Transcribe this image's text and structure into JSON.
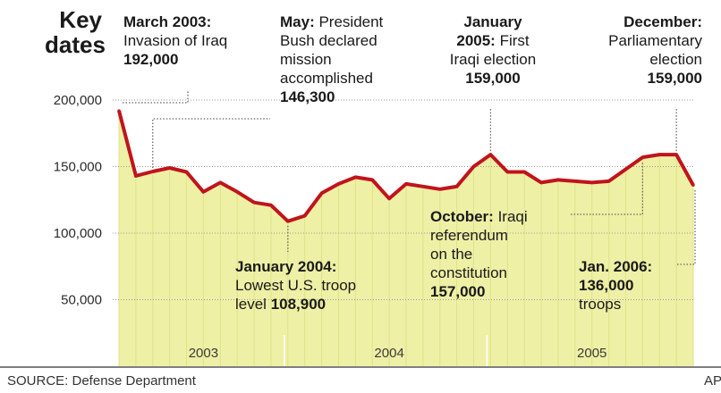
{
  "key_title": {
    "line1": "Key",
    "line2": "dates"
  },
  "source": "SOURCE: Defense Department",
  "credit": "AP",
  "colors": {
    "line": "#c0141c",
    "area": "#eef0a6",
    "area_edge": "#dfe289",
    "grid": "#9a9a9a",
    "annotation_line": "#666666"
  },
  "annotations": [
    {
      "id": "mar2003",
      "title": "March 2003:",
      "lines": [
        "Invasion of Iraq"
      ],
      "value": "192,000"
    },
    {
      "id": "may2003",
      "title": "May:",
      "title_rest": " President",
      "lines": [
        "Bush declared",
        "mission",
        "accomplished"
      ],
      "value": "146,300"
    },
    {
      "id": "jan2005",
      "title": "January",
      "title2": "2005:",
      "title2_rest": " First",
      "lines": [
        "Iraqi election"
      ],
      "value": "159,000"
    },
    {
      "id": "dec2005",
      "title": "December:",
      "lines": [
        "Parliamentary",
        "election"
      ],
      "value": "159,000"
    },
    {
      "id": "jan2004",
      "title": "January 2004:",
      "lines": [
        "Lowest U.S. troop"
      ],
      "tail": "level ",
      "value": "108,900"
    },
    {
      "id": "oct2005",
      "title": "October:",
      "title_rest": " Iraqi",
      "lines": [
        "referendum",
        "on the",
        "constitution"
      ],
      "value": "157,000"
    },
    {
      "id": "jan2006",
      "title": "Jan. 2006:",
      "lines": [],
      "value": "136,000",
      "after": "troops"
    }
  ],
  "chart_data": {
    "type": "area",
    "title": "",
    "xlabel": "",
    "ylabel": "",
    "ylim": [
      0,
      205000
    ],
    "yticks": [
      50000,
      100000,
      150000,
      200000
    ],
    "ytick_labels": [
      "50,000",
      "100,000",
      "150,000",
      "200,000"
    ],
    "year_labels": [
      "2003",
      "2004",
      "2005"
    ],
    "grid": true,
    "series": [
      {
        "x": [
          "2003-03",
          "2003-04",
          "2003-05",
          "2003-06",
          "2003-07",
          "2003-08",
          "2003-09",
          "2003-10",
          "2003-11",
          "2003-12",
          "2004-01",
          "2004-02",
          "2004-03",
          "2004-04",
          "2004-05",
          "2004-06",
          "2004-07",
          "2004-08",
          "2004-09",
          "2004-10",
          "2004-11",
          "2004-12",
          "2005-01",
          "2005-02",
          "2005-03",
          "2005-04",
          "2005-05",
          "2005-06",
          "2005-07",
          "2005-08",
          "2005-09",
          "2005-10",
          "2005-11",
          "2005-12",
          "2006-01"
        ],
        "values": [
          192000,
          143000,
          146300,
          149000,
          146000,
          131000,
          138000,
          131000,
          123000,
          121000,
          108900,
          113000,
          130000,
          137000,
          142000,
          140000,
          126000,
          137000,
          135000,
          133000,
          135000,
          150000,
          159000,
          146000,
          146000,
          138000,
          140000,
          139000,
          138000,
          139000,
          148000,
          157000,
          159000,
          159000,
          136000
        ]
      }
    ]
  }
}
